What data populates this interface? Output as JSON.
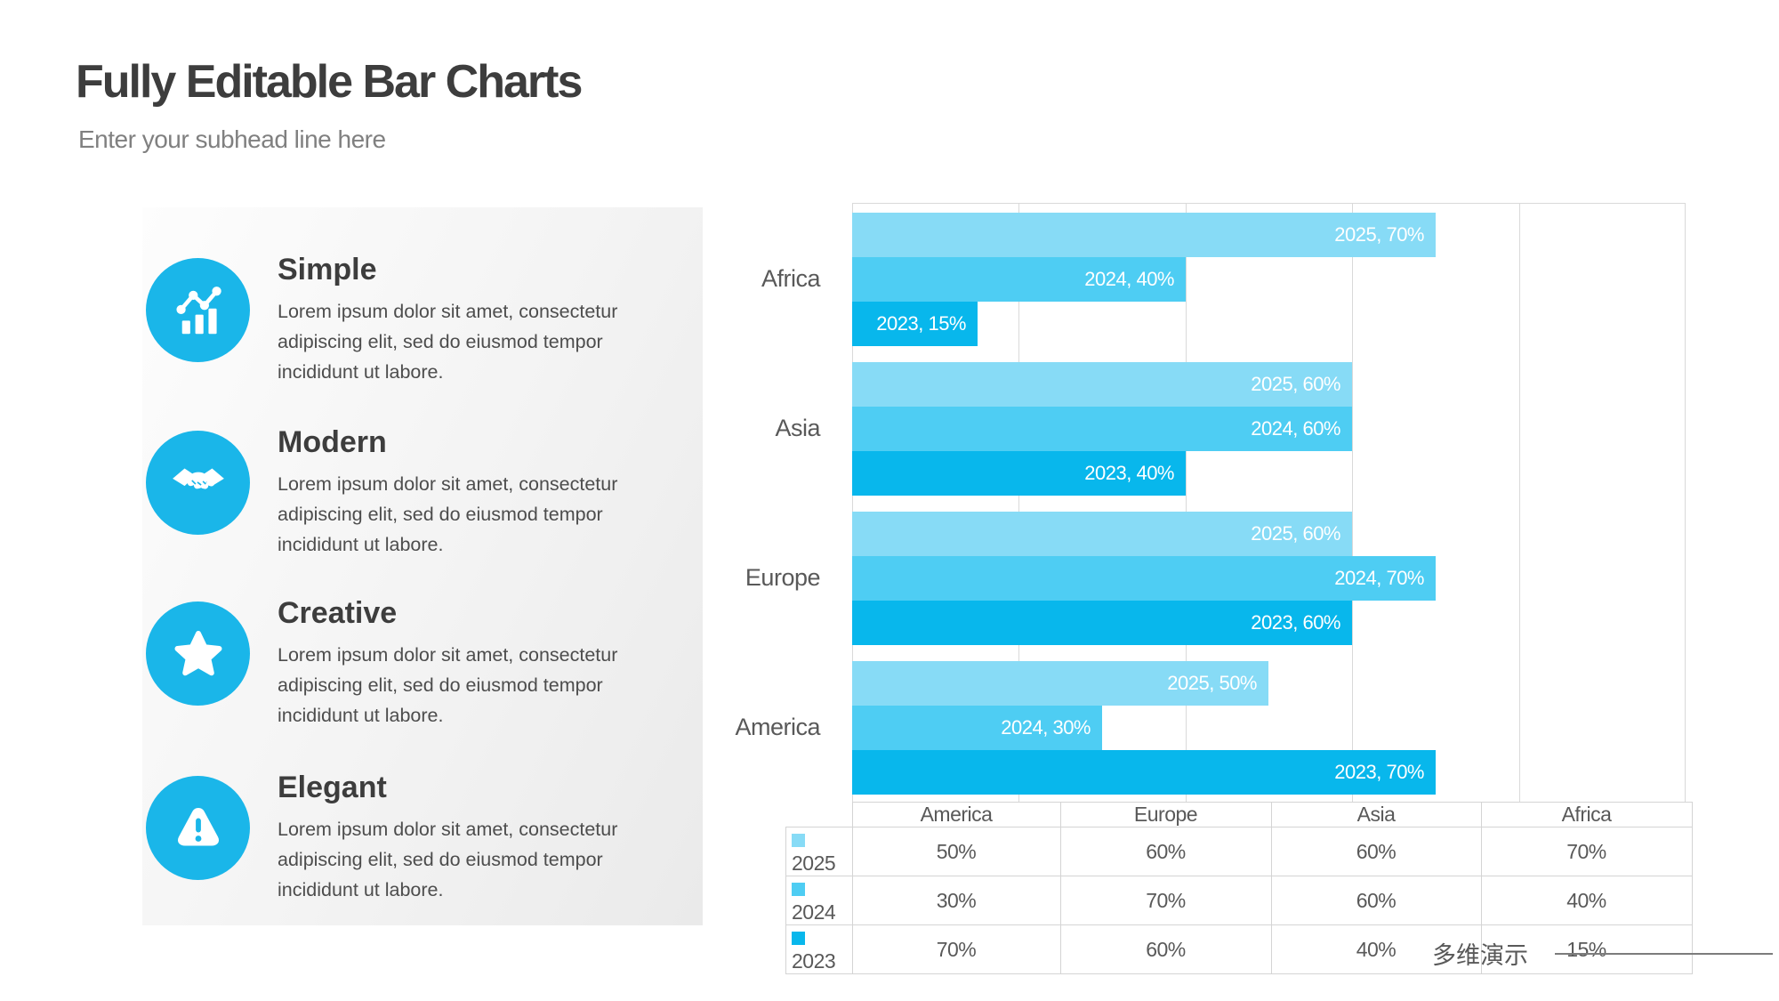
{
  "slide": {
    "title": "Fully Editable Bar Charts",
    "subtitle": "Enter your subhead line here",
    "footer_brand": "多维演示"
  },
  "colors": {
    "accent_cyan": "#1AB6E9",
    "grid_gray": "#D9D9D9",
    "title_dark": "#3D3D3D",
    "body_gray": "#4D4D4D",
    "label_gray": "#595959",
    "bar_label_white": "#FFFFFF"
  },
  "features": [
    {
      "name": "Simple",
      "icon": "bar-line-chart-icon",
      "description": "Lorem ipsum dolor sit amet, consectetur\nadipiscing elit, sed do eiusmod tempor\nincididunt ut labore."
    },
    {
      "name": "Modern",
      "icon": "handshake-icon",
      "description": "Lorem ipsum dolor sit amet, consectetur\nadipiscing elit, sed do eiusmod tempor\nincididunt ut labore."
    },
    {
      "name": "Creative",
      "icon": "star-icon",
      "description": "Lorem ipsum dolor sit amet, consectetur\nadipiscing elit, sed do eiusmod tempor\nincididunt ut labore."
    },
    {
      "name": "Elegant",
      "icon": "warning-icon",
      "description": "Lorem ipsum dolor sit amet, consectetur\nadipiscing elit, sed do eiusmod tempor\nincididunt ut labore."
    }
  ],
  "chart_data": {
    "type": "bar",
    "orientation": "horizontal",
    "title": "",
    "xlabel": "",
    "ylabel": "",
    "xlim": [
      0,
      100
    ],
    "gridline_step_pct": 20,
    "grid": true,
    "unit": "%",
    "categories": [
      "Africa",
      "Asia",
      "Europe",
      "America"
    ],
    "series": [
      {
        "name": "2025",
        "color": "#87DBF6",
        "values": [
          70,
          60,
          60,
          50
        ]
      },
      {
        "name": "2024",
        "color": "#4ECDF3",
        "values": [
          40,
          60,
          70,
          30
        ]
      },
      {
        "name": "2023",
        "color": "#08B7EC",
        "values": [
          15,
          40,
          60,
          70
        ]
      }
    ],
    "bar_label_format": "{series}, {value}%",
    "legend_position": "table-left"
  },
  "table": {
    "columns": [
      "America",
      "Europe",
      "Asia",
      "Africa"
    ],
    "rows": [
      {
        "year": "2025",
        "color": "#87DBF6",
        "values": [
          "50%",
          "60%",
          "60%",
          "70%"
        ]
      },
      {
        "year": "2024",
        "color": "#4ECDF3",
        "values": [
          "30%",
          "70%",
          "60%",
          "40%"
        ]
      },
      {
        "year": "2023",
        "color": "#08B7EC",
        "values": [
          "70%",
          "60%",
          "40%",
          "15%"
        ]
      }
    ]
  }
}
